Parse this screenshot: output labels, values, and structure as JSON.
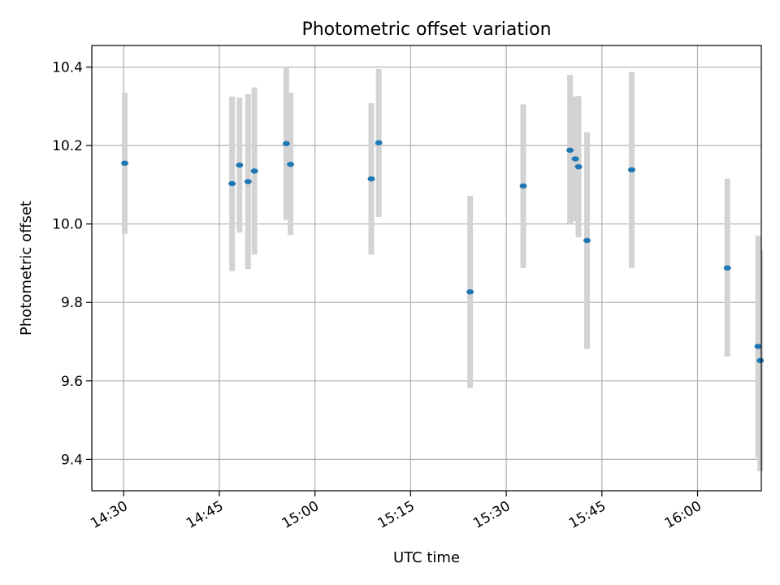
{
  "chart_data": {
    "type": "scatter",
    "title": "Photometric offset variation",
    "xlabel": "UTC time",
    "ylabel": "Photometric offset",
    "x_axis": "time (HH:MM, UTC)",
    "xlim": [
      "14:25",
      "16:10"
    ],
    "ylim": [
      9.32,
      10.455
    ],
    "xticks": [
      "14:30",
      "14:45",
      "15:00",
      "15:15",
      "15:30",
      "15:45",
      "16:00"
    ],
    "yticks": [
      9.4,
      9.6,
      9.8,
      10.0,
      10.2,
      10.4
    ],
    "grid": true,
    "marker_color": "#1f77b4",
    "errorbar_color": "#d3d3d3",
    "points": [
      {
        "x": "14:30:10",
        "y": 10.155,
        "ylow": 9.975,
        "yhigh": 10.335
      },
      {
        "x": "14:47:00",
        "y": 10.103,
        "ylow": 9.88,
        "yhigh": 10.325
      },
      {
        "x": "14:48:10",
        "y": 10.15,
        "ylow": 9.978,
        "yhigh": 10.322
      },
      {
        "x": "14:49:30",
        "y": 10.108,
        "ylow": 9.885,
        "yhigh": 10.331
      },
      {
        "x": "14:50:30",
        "y": 10.135,
        "ylow": 9.922,
        "yhigh": 10.348
      },
      {
        "x": "14:55:30",
        "y": 10.205,
        "ylow": 10.01,
        "yhigh": 10.4
      },
      {
        "x": "14:56:10",
        "y": 10.152,
        "ylow": 9.972,
        "yhigh": 10.335
      },
      {
        "x": "15:08:50",
        "y": 10.115,
        "ylow": 9.922,
        "yhigh": 10.308
      },
      {
        "x": "15:10:00",
        "y": 10.207,
        "ylow": 10.018,
        "yhigh": 10.395
      },
      {
        "x": "15:24:20",
        "y": 9.827,
        "ylow": 9.582,
        "yhigh": 10.072
      },
      {
        "x": "15:32:40",
        "y": 10.097,
        "ylow": 9.888,
        "yhigh": 10.305
      },
      {
        "x": "15:40:00",
        "y": 10.188,
        "ylow": 10.0,
        "yhigh": 10.38
      },
      {
        "x": "15:40:50",
        "y": 10.166,
        "ylow": 10.007,
        "yhigh": 10.325
      },
      {
        "x": "15:41:20",
        "y": 10.146,
        "ylow": 9.966,
        "yhigh": 10.326
      },
      {
        "x": "15:42:40",
        "y": 9.958,
        "ylow": 9.682,
        "yhigh": 10.234
      },
      {
        "x": "15:49:40",
        "y": 10.138,
        "ylow": 9.888,
        "yhigh": 10.388
      },
      {
        "x": "16:04:40",
        "y": 9.888,
        "ylow": 9.662,
        "yhigh": 10.115
      },
      {
        "x": "16:09:30",
        "y": 9.688,
        "ylow": 9.405,
        "yhigh": 9.97
      },
      {
        "x": "16:09:50",
        "y": 9.652,
        "ylow": 9.37,
        "yhigh": 9.935
      }
    ]
  }
}
